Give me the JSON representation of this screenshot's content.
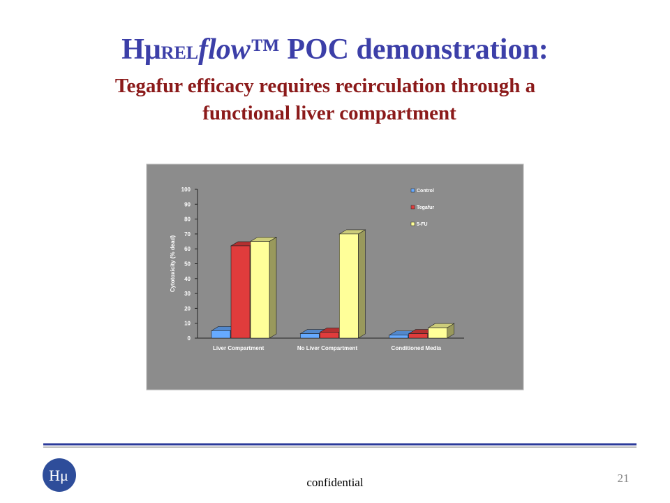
{
  "title_parts": [
    "Hμ",
    "REL",
    "flow",
    "™ POC demonstration:"
  ],
  "subtitle_lines": [
    "Tegafur efficacy requires recirculation through a",
    "functional liver compartment"
  ],
  "chart_data": {
    "type": "bar3d",
    "ylabel": "Cytotoxicity (% dead)",
    "categories": [
      "Liver Compartment",
      "No Liver Compartment",
      "Conditioned Media"
    ],
    "series": [
      {
        "name": "Control",
        "color": "#66aaff",
        "values": [
          5,
          3,
          2
        ]
      },
      {
        "name": "Tegafur",
        "color": "#e03c3c",
        "values": [
          62,
          4,
          3
        ]
      },
      {
        "name": "5-FU",
        "color": "#ffff99",
        "values": [
          65,
          70,
          7
        ]
      }
    ],
    "ylim": [
      0,
      100
    ],
    "yticks": [
      0,
      10,
      20,
      30,
      40,
      50,
      60,
      70,
      80,
      90,
      100
    ],
    "background": "#8c8c8c"
  },
  "footer": {
    "logo": "Hμ",
    "label": "confidential",
    "page": "21"
  }
}
